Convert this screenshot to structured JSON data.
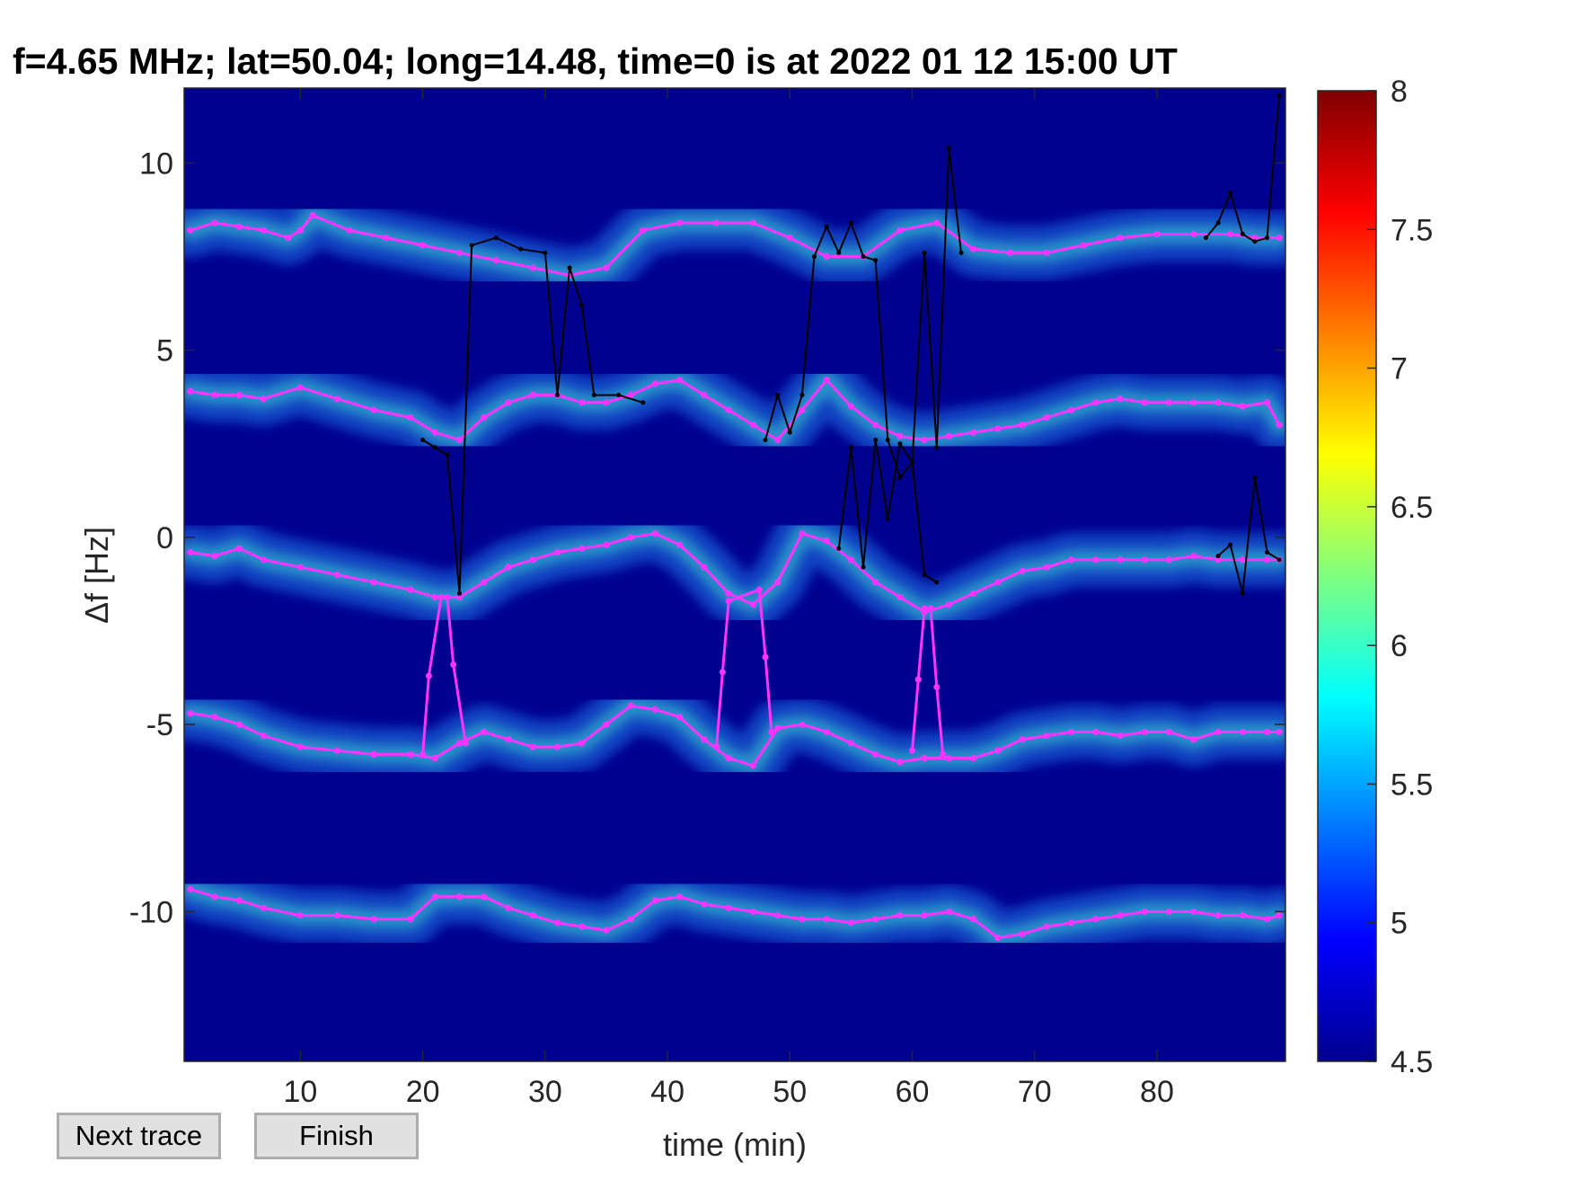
{
  "buttons": {
    "next_trace": "Next trace",
    "finish": "Finish"
  },
  "chart_data": {
    "type": "heatmap",
    "title": "f=4.65 MHz;  lat=50.04; long=14.48, time=0 is at 2022 01 12 15:00 UT",
    "xlabel": "time (min)",
    "ylabel": "Δf [Hz]",
    "xlim": [
      0.5,
      90.5
    ],
    "ylim": [
      -14,
      12
    ],
    "xticks": [
      10,
      20,
      30,
      40,
      50,
      60,
      70,
      80
    ],
    "xtick_labels": [
      "10",
      "20",
      "30",
      "40",
      "50",
      "60",
      "70",
      "80"
    ],
    "yticks": [
      10,
      5,
      0,
      -5,
      -10
    ],
    "ytick_labels": [
      "10",
      "5",
      "0",
      "-5",
      "-10"
    ],
    "colorbar": {
      "range": [
        4.5,
        8
      ],
      "ticks": [
        8,
        7.5,
        7,
        6.5,
        6,
        5.5,
        5,
        4.5
      ],
      "tick_labels": [
        "8",
        "7.5",
        "7",
        "6.5",
        "6",
        "5.5",
        "5",
        "4.5"
      ],
      "colormap": "jet"
    },
    "colors": {
      "background": "#00008f",
      "fitted_trace": "#ff33ff",
      "raw_trace": "#000000"
    },
    "series": [
      {
        "x": [
          1,
          3,
          5,
          7,
          9,
          10,
          11,
          14,
          17,
          20,
          23,
          26,
          29,
          32,
          35,
          38,
          41,
          44,
          47,
          50,
          53,
          56,
          59,
          62,
          65,
          68,
          71,
          74,
          77,
          80,
          83,
          86,
          88,
          90
        ],
        "y": [
          8.2,
          8.4,
          8.3,
          8.2,
          8.0,
          8.2,
          8.6,
          8.2,
          8.0,
          7.8,
          7.6,
          7.4,
          7.2,
          7.0,
          7.2,
          8.2,
          8.4,
          8.4,
          8.4,
          8.0,
          7.5,
          7.5,
          8.2,
          8.4,
          7.7,
          7.6,
          7.6,
          7.8,
          8.0,
          8.1,
          8.1,
          8.1,
          8.0,
          8.0
        ]
      },
      {
        "x": [
          1,
          3,
          5,
          7,
          10,
          13,
          16,
          19,
          21,
          23,
          25,
          27,
          29,
          31,
          33,
          35,
          37,
          39,
          41,
          43,
          45,
          47,
          49,
          51,
          53,
          55,
          57,
          59,
          61,
          63,
          65,
          67,
          69,
          71,
          73,
          75,
          77,
          79,
          81,
          83,
          85,
          87,
          89,
          90
        ],
        "y": [
          3.9,
          3.8,
          3.8,
          3.7,
          4.0,
          3.7,
          3.4,
          3.2,
          2.8,
          2.6,
          3.2,
          3.6,
          3.8,
          3.8,
          3.6,
          3.6,
          3.8,
          4.1,
          4.2,
          3.8,
          3.4,
          3.0,
          2.6,
          3.4,
          4.2,
          3.5,
          3.0,
          2.7,
          2.6,
          2.7,
          2.8,
          2.9,
          3.0,
          3.2,
          3.4,
          3.6,
          3.7,
          3.6,
          3.6,
          3.6,
          3.6,
          3.5,
          3.6,
          3.0
        ]
      },
      {
        "x": [
          1,
          3,
          5,
          7,
          10,
          13,
          16,
          19,
          21,
          23,
          25,
          27,
          29,
          31,
          33,
          35,
          37,
          39,
          41,
          43,
          45,
          47,
          49,
          51,
          53,
          55,
          57,
          59,
          61,
          63,
          65,
          67,
          69,
          71,
          73,
          75,
          77,
          79,
          81,
          83,
          85,
          87,
          89,
          90
        ],
        "y": [
          -0.4,
          -0.5,
          -0.3,
          -0.6,
          -0.8,
          -1.0,
          -1.2,
          -1.4,
          -1.6,
          -1.6,
          -1.2,
          -0.8,
          -0.6,
          -0.4,
          -0.3,
          -0.2,
          0.0,
          0.1,
          -0.2,
          -0.8,
          -1.5,
          -1.8,
          -1.2,
          0.1,
          -0.1,
          -0.6,
          -1.2,
          -1.6,
          -2.0,
          -1.8,
          -1.5,
          -1.2,
          -0.9,
          -0.8,
          -0.6,
          -0.6,
          -0.6,
          -0.6,
          -0.6,
          -0.5,
          -0.6,
          -0.6,
          -0.6,
          -0.6
        ]
      },
      {
        "x": [
          1,
          3,
          5,
          7,
          10,
          13,
          16,
          19,
          21,
          23,
          25,
          27,
          29,
          31,
          33,
          35,
          37,
          39,
          41,
          43,
          45,
          47,
          49,
          51,
          53,
          55,
          57,
          59,
          61,
          63,
          65,
          67,
          69,
          71,
          73,
          75,
          77,
          79,
          81,
          83,
          85,
          87,
          89,
          90
        ],
        "y": [
          -4.7,
          -4.8,
          -5.0,
          -5.3,
          -5.6,
          -5.7,
          -5.8,
          -5.8,
          -5.9,
          -5.5,
          -5.2,
          -5.4,
          -5.6,
          -5.6,
          -5.5,
          -5.0,
          -4.5,
          -4.6,
          -4.8,
          -5.4,
          -5.9,
          -6.1,
          -5.1,
          -5.0,
          -5.2,
          -5.5,
          -5.8,
          -6.0,
          -5.9,
          -5.9,
          -5.9,
          -5.7,
          -5.4,
          -5.3,
          -5.2,
          -5.2,
          -5.3,
          -5.2,
          -5.2,
          -5.4,
          -5.2,
          -5.2,
          -5.2,
          -5.2
        ]
      },
      {
        "x": [
          1,
          3,
          5,
          7,
          10,
          13,
          16,
          19,
          21,
          23,
          25,
          27,
          29,
          31,
          33,
          35,
          37,
          39,
          41,
          43,
          45,
          47,
          49,
          51,
          53,
          55,
          57,
          59,
          61,
          63,
          65,
          67,
          69,
          71,
          73,
          75,
          77,
          79,
          81,
          83,
          85,
          87,
          89,
          90
        ],
        "y": [
          -9.4,
          -9.6,
          -9.7,
          -9.9,
          -10.1,
          -10.1,
          -10.2,
          -10.2,
          -9.6,
          -9.6,
          -9.6,
          -9.9,
          -10.1,
          -10.3,
          -10.4,
          -10.5,
          -10.2,
          -9.7,
          -9.6,
          -9.8,
          -9.9,
          -10.0,
          -10.1,
          -10.2,
          -10.2,
          -10.3,
          -10.2,
          -10.1,
          -10.1,
          -10.0,
          -10.2,
          -10.7,
          -10.6,
          -10.4,
          -10.3,
          -10.2,
          -10.1,
          -10.0,
          -10.0,
          -10.0,
          -10.1,
          -10.1,
          -10.2,
          -10.1
        ]
      },
      {
        "x": [
          20,
          20.5,
          21.5,
          22,
          22.5,
          23.5
        ],
        "y": [
          -5.8,
          -3.7,
          -1.6,
          -1.6,
          -3.4,
          -5.5
        ]
      },
      {
        "x": [
          44,
          44.5,
          45,
          47.5,
          48,
          48.5
        ],
        "y": [
          -5.6,
          -3.6,
          -1.7,
          -1.4,
          -3.2,
          -5.2
        ]
      },
      {
        "x": [
          60,
          60.5,
          61,
          61.5,
          62,
          62.5
        ],
        "y": [
          -5.7,
          -3.8,
          -1.9,
          -1.9,
          -4.0,
          -5.8
        ]
      },
      {
        "x": [
          20,
          21,
          22,
          23,
          24,
          26,
          28,
          30,
          31,
          32,
          33,
          34,
          36,
          38
        ],
        "y": [
          2.6,
          2.4,
          2.2,
          -1.5,
          7.8,
          8.0,
          7.7,
          7.6,
          3.8,
          7.2,
          6.2,
          3.8,
          3.8,
          3.6
        ]
      },
      {
        "x": [
          48,
          49,
          50,
          51,
          52,
          53,
          54,
          55,
          56,
          57,
          58,
          59,
          60,
          61,
          62,
          63,
          64
        ],
        "y": [
          2.6,
          3.8,
          2.8,
          3.8,
          7.5,
          8.3,
          7.6,
          8.4,
          7.5,
          7.4,
          2.6,
          1.6,
          2.0,
          7.6,
          2.4,
          10.4,
          7.6
        ]
      },
      {
        "x": [
          54,
          55,
          56,
          57,
          58,
          59,
          60,
          61,
          62
        ],
        "y": [
          -0.3,
          2.4,
          -0.8,
          2.6,
          0.5,
          2.5,
          2.0,
          -1.0,
          -1.2
        ]
      },
      {
        "x": [
          84,
          85,
          86,
          87,
          88,
          89,
          90
        ],
        "y": [
          8.0,
          8.4,
          9.2,
          8.1,
          7.9,
          8.0,
          11.8
        ]
      },
      {
        "x": [
          85,
          86,
          87,
          88,
          89,
          90
        ],
        "y": [
          -0.5,
          -0.2,
          -1.5,
          1.6,
          -0.4,
          -0.6
        ]
      }
    ]
  }
}
